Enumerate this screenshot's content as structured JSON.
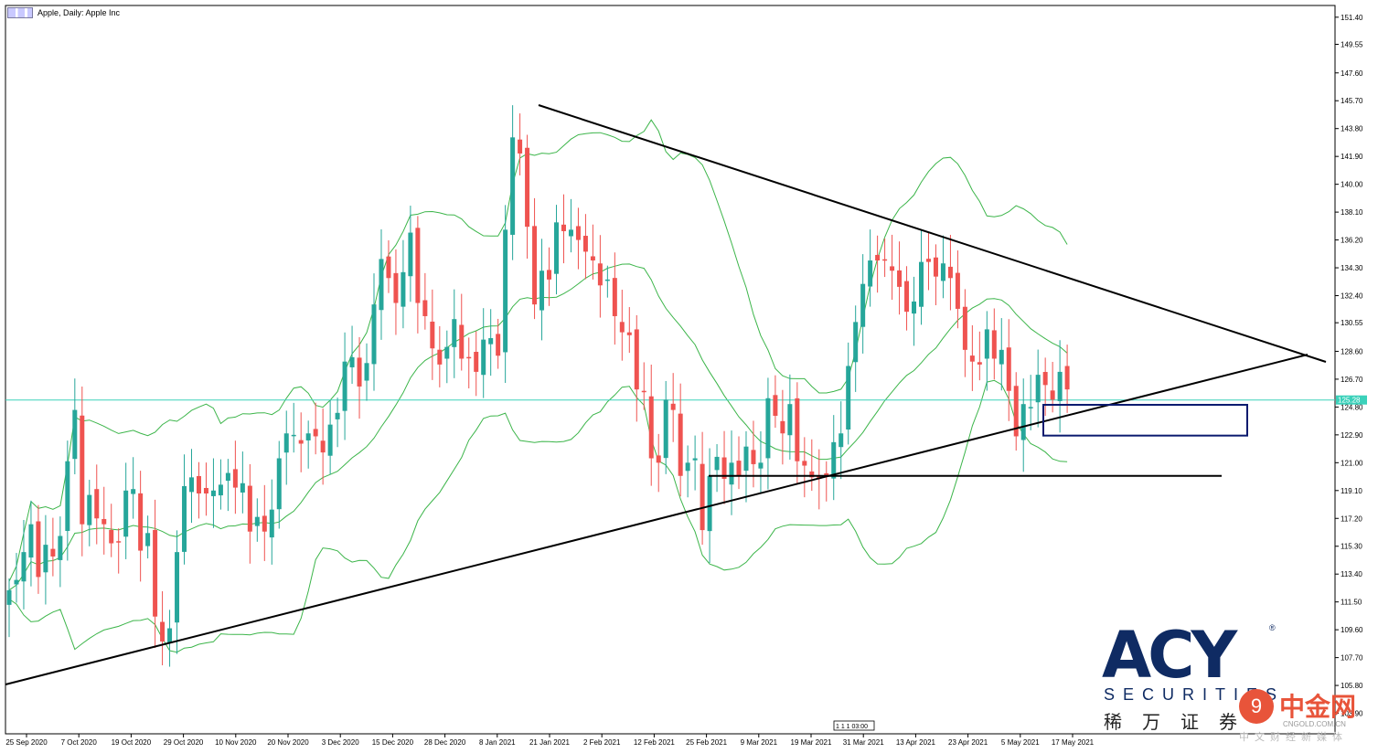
{
  "header": {
    "title": "Apple, Daily:  Apple Inc"
  },
  "logo": {
    "word": "ACY",
    "registered": "®",
    "sub": "SECURITIES",
    "chinese": "稀万证券"
  },
  "watermark": {
    "glyph": "9",
    "text": "中金网",
    "url": "CNGOLD.COM.CN",
    "tagline": "中文财经新媒体"
  },
  "time_marker": "1 1 1 03:00",
  "colors": {
    "bull": "#26a69a",
    "bear": "#ef5350",
    "band": "#3cb54a",
    "price_line": "#3bd1ba",
    "box": "#0a1a6e"
  },
  "chart_data": {
    "type": "candlestick",
    "title": "Apple, Daily:  Apple Inc",
    "ylim": [
      102.5,
      152.2
    ],
    "y_ticks": [
      "151.40",
      "149.55",
      "147.60",
      "145.70",
      "143.80",
      "141.90",
      "140.00",
      "138.10",
      "136.20",
      "134.30",
      "132.40",
      "130.55",
      "128.60",
      "126.70",
      "124.80",
      "122.90",
      "121.00",
      "119.10",
      "117.20",
      "115.30",
      "113.40",
      "111.50",
      "109.60",
      "107.70",
      "105.80",
      "103.90"
    ],
    "x_ticks": [
      "25 Sep 2020",
      "7 Oct 2020",
      "19 Oct 2020",
      "29 Oct 2020",
      "10 Nov 2020",
      "20 Nov 2020",
      "3 Dec 2020",
      "15 Dec 2020",
      "28 Dec 2020",
      "8 Jan 2021",
      "21 Jan 2021",
      "2 Feb 2021",
      "12 Feb 2021",
      "25 Feb 2021",
      "9 Mar 2021",
      "19 Mar 2021",
      "31 Mar 2021",
      "13 Apr 2021",
      "23 Apr 2021",
      "5 May 2021",
      "17 May 2021"
    ],
    "current_price": 125.28,
    "current_price_label": "125.28",
    "closes": [
      112.3,
      113.0,
      114.9,
      116.8,
      113.2,
      115.4,
      114.6,
      116.0,
      121.1,
      124.6,
      116.8,
      118.8,
      117.2,
      116.8,
      115.5,
      115.6,
      119.1,
      119.2,
      115.0,
      116.2,
      110.5,
      108.8,
      109.7,
      114.9,
      119.4,
      120.0,
      118.9,
      118.9,
      119.1,
      119.5,
      120.3,
      119.3,
      119.6,
      116.3,
      117.3,
      116.3,
      117.8,
      121.3,
      123.0,
      122.9,
      122.3,
      123.0,
      122.8,
      121.7,
      123.6,
      124.4,
      127.9,
      128.2,
      126.2,
      127.8,
      131.8,
      134.9,
      133.6,
      131.9,
      134.0,
      136.7,
      131.9,
      131.0,
      128.8,
      127.7,
      128.9,
      130.8,
      128.1,
      128.2,
      127.2,
      129.4,
      129.5,
      128.3,
      136.9,
      143.2,
      142.1,
      137.1,
      131.8,
      134.1,
      133.5,
      137.4,
      136.8,
      136.9,
      136.2,
      135.4,
      134.8,
      133.1,
      133.5,
      131.0,
      129.9,
      129.7,
      126.0,
      125.9,
      121.3,
      121.0,
      125.3,
      124.6,
      120.1,
      121.0,
      121.3,
      116.4,
      120.1,
      121.4,
      119.9,
      121.0,
      120.1,
      122.1,
      120.9,
      121.0,
      125.4,
      124.2,
      123.0,
      125.0,
      121.1,
      120.8,
      120.0,
      119.9,
      120.1,
      122.4,
      123.0,
      127.6,
      130.6,
      133.2,
      134.8,
      134.8,
      134.8,
      134.1,
      133.0,
      131.3,
      132.0,
      134.7,
      134.7,
      133.7,
      134.6,
      133.6,
      131.5,
      128.7,
      127.9,
      127.7,
      130.1,
      128.1,
      128.7,
      125.9,
      122.8,
      125.0,
      124.8,
      127.0,
      126.3,
      125.3,
      127.2,
      126.0
    ],
    "series": [
      {
        "name": "",
        "values": []
      }
    ],
    "annotations": {
      "horizontal_support": 120.1,
      "triangle": "descending resistance and ascending support trendlines converging near 23 May 2021",
      "box": "rectangle around 122.9–125.0 zone"
    },
    "grid": false
  }
}
